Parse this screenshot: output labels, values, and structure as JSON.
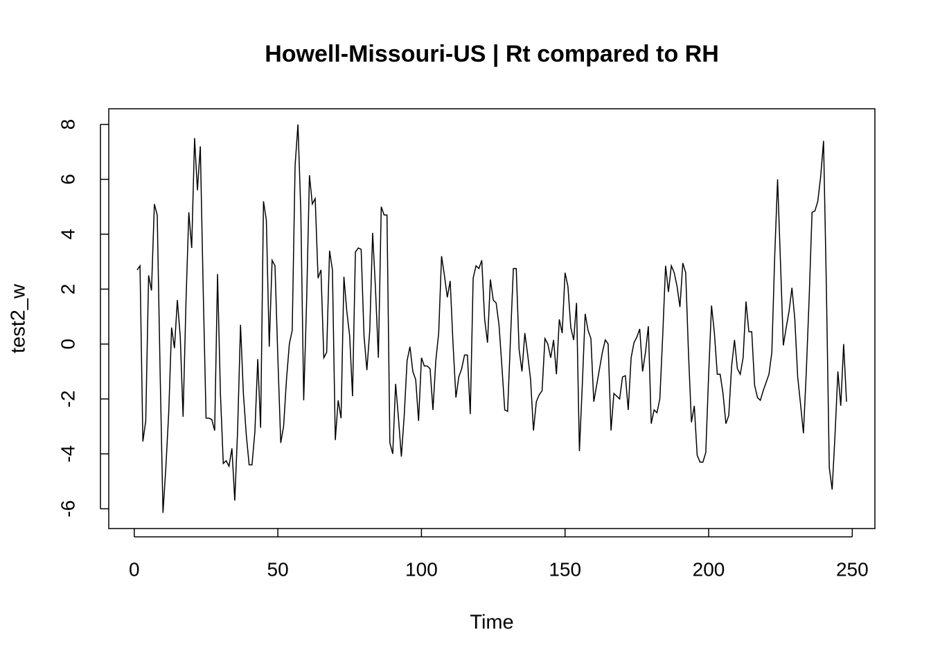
{
  "chart_data": {
    "type": "line",
    "title": "Howell-Missouri-US | Rt compared to RH",
    "x_label": "Time",
    "y_label": "test2_w",
    "color": "#000000",
    "xlim": [
      -8.88,
      257.88
    ],
    "ylim": [
      -6.72,
      8.57
    ],
    "xticks": [
      0,
      50,
      100,
      150,
      200,
      250
    ],
    "yticks": [
      -6,
      -4,
      -2,
      0,
      2,
      4,
      6,
      8
    ],
    "x": [
      1,
      2,
      3,
      4,
      5,
      6,
      7,
      8,
      9,
      10,
      11,
      12,
      13,
      14,
      15,
      16,
      17,
      18,
      19,
      20,
      21,
      22,
      23,
      24,
      25,
      26,
      27,
      28,
      29,
      30,
      31,
      32,
      33,
      34,
      35,
      36,
      37,
      38,
      39,
      40,
      41,
      42,
      43,
      44,
      45,
      46,
      47,
      48,
      49,
      50,
      51,
      52,
      53,
      54,
      55,
      56,
      57,
      58,
      59,
      60,
      61,
      62,
      63,
      64,
      65,
      66,
      67,
      68,
      69,
      70,
      71,
      72,
      73,
      74,
      75,
      76,
      77,
      78,
      79,
      80,
      81,
      82,
      83,
      84,
      85,
      86,
      87,
      88,
      89,
      90,
      91,
      92,
      93,
      94,
      95,
      96,
      97,
      98,
      99,
      100,
      101,
      102,
      103,
      104,
      105,
      106,
      107,
      108,
      109,
      110,
      111,
      112,
      113,
      114,
      115,
      116,
      117,
      118,
      119,
      120,
      121,
      122,
      123,
      124,
      125,
      126,
      127,
      128,
      129,
      130,
      131,
      132,
      133,
      134,
      135,
      136,
      137,
      138,
      139,
      140,
      141,
      142,
      143,
      144,
      145,
      146,
      147,
      148,
      149,
      150,
      151,
      152,
      153,
      154,
      155,
      156,
      157,
      158,
      159,
      160,
      161,
      162,
      163,
      164,
      165,
      166,
      167,
      168,
      169,
      170,
      171,
      172,
      173,
      174,
      175,
      176,
      177,
      178,
      179,
      180,
      181,
      182,
      183,
      184,
      185,
      186,
      187,
      188,
      189,
      190,
      191,
      192,
      193,
      194,
      195,
      196,
      197,
      198,
      199,
      200,
      201,
      202,
      203,
      204,
      205,
      206,
      207,
      208,
      209,
      210,
      211,
      212,
      213,
      214,
      215,
      216,
      217,
      218,
      219,
      220,
      221,
      222,
      223,
      224,
      225,
      226,
      227,
      228,
      229,
      230,
      231,
      232,
      233,
      234,
      235,
      236,
      237,
      238,
      239,
      240,
      241,
      242,
      243,
      244,
      245,
      246,
      247,
      248
    ],
    "values": [
      2.7,
      2.85,
      -3.55,
      -2.8,
      2.5,
      1.95,
      5.1,
      4.7,
      -1.0,
      -6.15,
      -4.5,
      -2.5,
      0.6,
      -0.15,
      1.6,
      0.3,
      -2.65,
      1.5,
      4.8,
      3.5,
      7.5,
      5.6,
      7.2,
      2.0,
      -2.7,
      -2.7,
      -2.75,
      -3.15,
      2.55,
      -1.8,
      -4.35,
      -4.25,
      -4.45,
      -3.8,
      -5.7,
      -3.1,
      0.7,
      -1.8,
      -3.3,
      -4.4,
      -4.4,
      -3.2,
      -0.55,
      -3.05,
      5.2,
      4.5,
      -0.1,
      3.05,
      2.85,
      -0.5,
      -3.6,
      -3.0,
      -1.3,
      0.0,
      0.5,
      6.5,
      8.0,
      4.8,
      -2.05,
      1.5,
      6.15,
      5.1,
      5.3,
      2.4,
      2.7,
      -0.5,
      -0.3,
      3.4,
      2.7,
      -3.5,
      -2.05,
      -2.7,
      2.45,
      1.2,
      0.3,
      -1.9,
      3.35,
      3.5,
      3.45,
      0.3,
      -0.95,
      0.5,
      4.05,
      2.0,
      -0.5,
      5.0,
      4.7,
      4.7,
      -3.6,
      -4.0,
      -1.45,
      -2.7,
      -4.1,
      -2.6,
      -0.6,
      -0.1,
      -1.0,
      -1.3,
      -2.8,
      -0.5,
      -0.8,
      -0.8,
      -0.9,
      -2.4,
      -0.6,
      0.4,
      3.2,
      2.5,
      1.7,
      2.3,
      0.0,
      -1.95,
      -1.2,
      -0.9,
      -0.4,
      -0.4,
      -2.55,
      2.4,
      2.85,
      2.75,
      3.05,
      0.9,
      0.05,
      2.35,
      1.6,
      1.5,
      0.7,
      -0.8,
      -2.4,
      -2.45,
      0.2,
      2.75,
      2.75,
      -0.2,
      -1.0,
      0.4,
      -0.4,
      -1.3,
      -3.15,
      -2.1,
      -1.85,
      -1.7,
      0.2,
      0.0,
      -0.5,
      0.15,
      -1.1,
      0.9,
      0.4,
      2.6,
      2.1,
      0.6,
      0.15,
      1.5,
      -3.9,
      -1.5,
      1.1,
      0.5,
      0.2,
      -2.1,
      -1.5,
      -0.9,
      -0.3,
      0.15,
      0.0,
      -3.15,
      -1.8,
      -1.9,
      -2.0,
      -1.2,
      -1.15,
      -2.4,
      -0.5,
      0.05,
      0.25,
      0.55,
      -1.0,
      -0.3,
      0.65,
      -2.9,
      -2.4,
      -2.5,
      -2.0,
      0.3,
      2.85,
      1.9,
      2.85,
      2.6,
      2.1,
      1.35,
      2.95,
      2.6,
      -0.4,
      -2.85,
      -2.25,
      -4.05,
      -4.3,
      -4.3,
      -3.95,
      -1.1,
      1.4,
      0.4,
      -1.1,
      -1.1,
      -1.8,
      -2.9,
      -2.6,
      -0.8,
      0.15,
      -0.9,
      -1.1,
      -0.5,
      1.55,
      0.45,
      0.45,
      -1.5,
      -1.95,
      -2.05,
      -1.7,
      -1.4,
      -1.1,
      -0.3,
      3.2,
      6.0,
      3.0,
      -0.05,
      0.6,
      1.2,
      2.05,
      0.9,
      -1.2,
      -2.2,
      -3.25,
      -1.0,
      1.7,
      4.8,
      4.85,
      5.2,
      6.1,
      7.4,
      2.0,
      -4.5,
      -5.3,
      -3.3,
      -1.0,
      -2.25,
      0.0,
      -2.1
    ]
  }
}
